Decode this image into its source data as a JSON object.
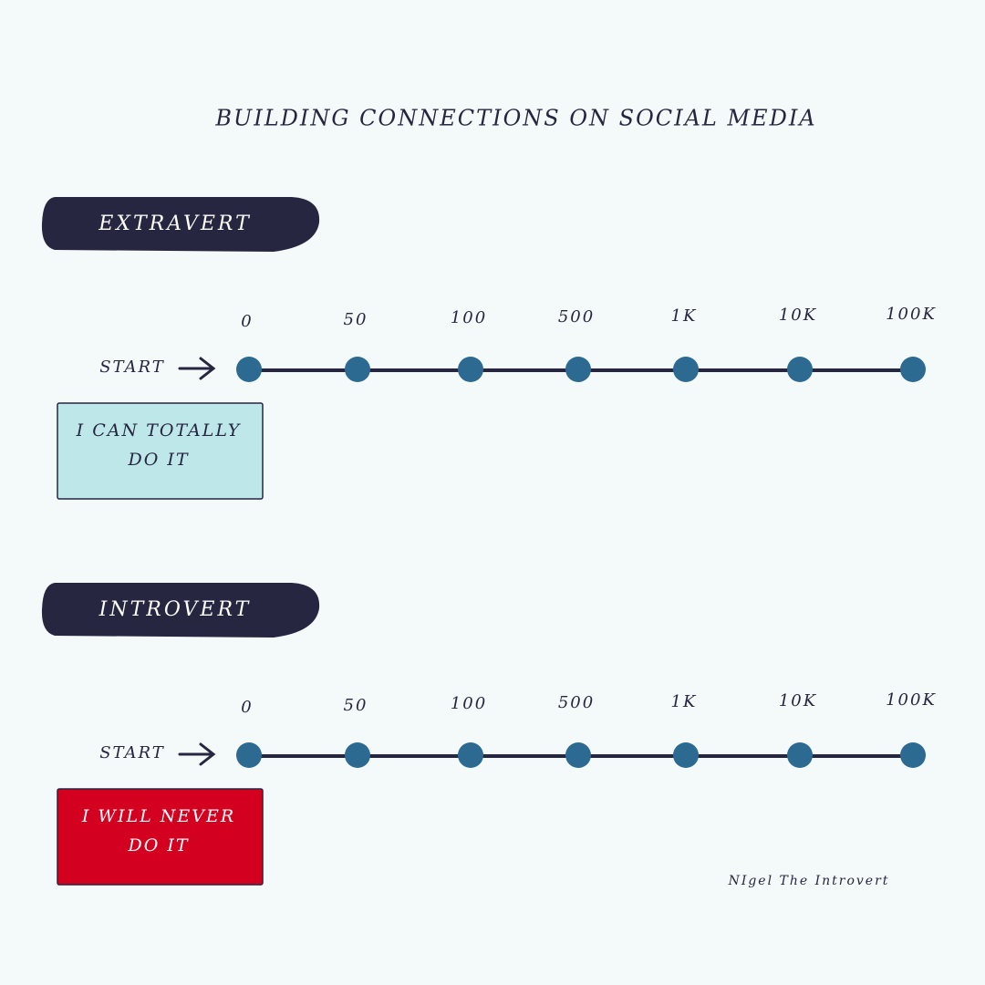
{
  "title": "BUILDING CONNECTIONS ON SOCIAL MEDIA",
  "sections": [
    {
      "label": "EXTRAVERT",
      "start": "START",
      "milestones": [
        "0",
        "50",
        "100",
        "500",
        "1K",
        "10K",
        "100K"
      ],
      "note": [
        "I CAN TOTALLY",
        "DO IT"
      ]
    },
    {
      "label": "INTROVERT",
      "start": "START",
      "milestones": [
        "0",
        "50",
        "100",
        "500",
        "1K",
        "10K",
        "100K"
      ],
      "note": [
        "I WILL NEVER",
        "DO IT"
      ]
    }
  ],
  "credit": "NIgel The Introvert"
}
